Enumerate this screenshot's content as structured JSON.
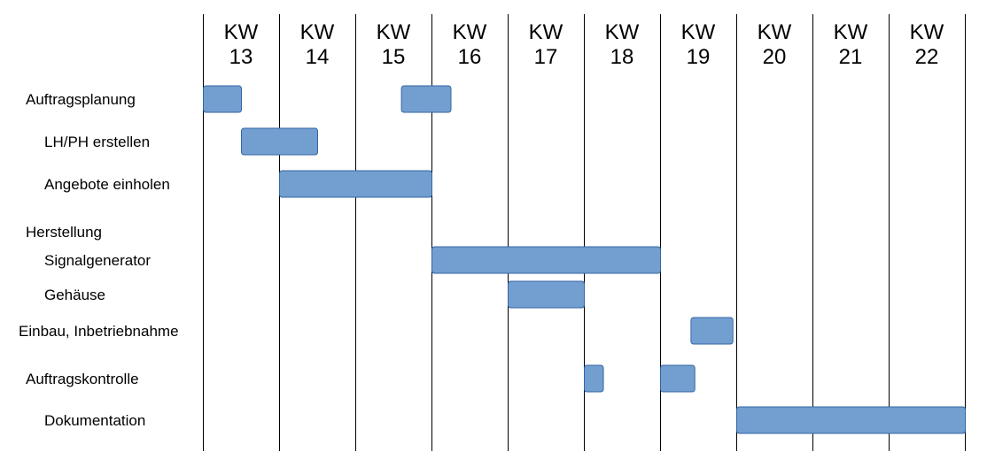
{
  "chart_data": {
    "type": "gantt",
    "title": "",
    "week_prefix": "KW",
    "weeks": [
      "13",
      "14",
      "15",
      "16",
      "17",
      "18",
      "19",
      "20",
      "21",
      "22"
    ],
    "grid": true,
    "colors": {
      "bar_fill": "#729fcf",
      "bar_border": "#3465a4"
    },
    "tasks": [
      {
        "name": "Auftragsplanung",
        "indent": 0,
        "segments": [
          [
            13.0,
            13.5
          ],
          [
            15.6,
            16.25
          ]
        ]
      },
      {
        "name": "LH/PH erstellen",
        "indent": 1,
        "segments": [
          [
            13.5,
            14.5
          ]
        ]
      },
      {
        "name": "Angebote einholen",
        "indent": 1,
        "segments": [
          [
            14.0,
            16.0
          ]
        ]
      },
      {
        "name": "Herstellung",
        "indent": 0,
        "segments": []
      },
      {
        "name": "Signalgenerator",
        "indent": 1,
        "segments": [
          [
            16.0,
            19.0
          ]
        ]
      },
      {
        "name": "Gehäuse",
        "indent": 1,
        "segments": [
          [
            17.0,
            18.0
          ]
        ]
      },
      {
        "name": "Einbau, Inbetriebnahme",
        "indent": -1,
        "segments": [
          [
            19.4,
            19.95
          ]
        ]
      },
      {
        "name": "Auftragskontrolle",
        "indent": 0,
        "segments": [
          [
            18.0,
            18.25
          ],
          [
            19.0,
            19.45
          ]
        ]
      },
      {
        "name": "Dokumentation",
        "indent": 1,
        "segments": [
          [
            20.0,
            23.0
          ]
        ]
      }
    ]
  }
}
